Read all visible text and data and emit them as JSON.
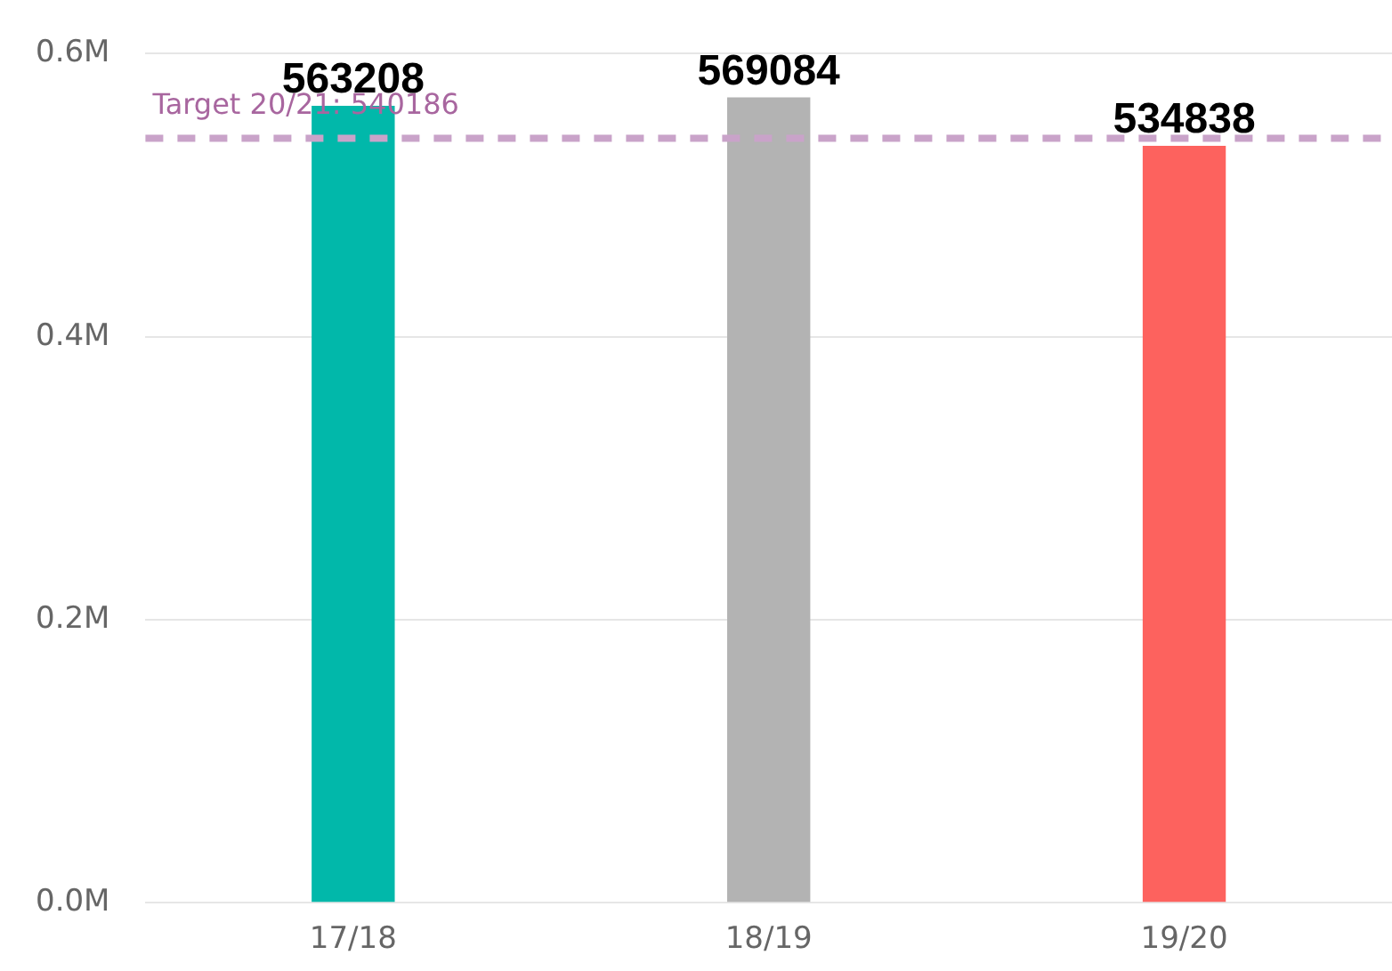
{
  "chart_data": {
    "type": "bar",
    "categories": [
      "17/18",
      "18/19",
      "19/20"
    ],
    "values": [
      563208,
      569084,
      534838
    ],
    "colors": [
      "#01b8aa",
      "#b3b3b3",
      "#fd625e"
    ],
    "ylim": [
      0,
      600000
    ],
    "yticks": [
      {
        "value": 0,
        "label": "0.0M"
      },
      {
        "value": 200000,
        "label": "0.2M"
      },
      {
        "value": 400000,
        "label": "0.4M"
      },
      {
        "value": 600000,
        "label": "0.6M"
      }
    ],
    "grid": "y",
    "data_labels": true,
    "legend": false,
    "ref_lines": [
      {
        "axis": "y",
        "value": 540186,
        "label": "Target 20/21: 540186",
        "color": "#c9a3c9",
        "line_style": "dashed"
      }
    ]
  }
}
